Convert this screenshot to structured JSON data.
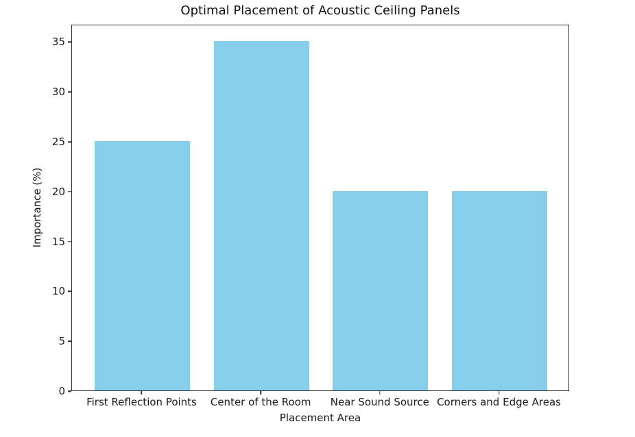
{
  "chart_data": {
    "type": "bar",
    "title": "Optimal Placement of Acoustic Ceiling Panels",
    "xlabel": "Placement Area",
    "ylabel": "Importance (%)",
    "categories": [
      "First Reflection Points",
      "Center of the Room",
      "Near Sound Source",
      "Corners and Edge Areas"
    ],
    "values": [
      25,
      35,
      20,
      20
    ],
    "yticks": [
      0,
      5,
      10,
      15,
      20,
      25,
      30,
      35
    ],
    "ylim": [
      0,
      36.75
    ],
    "bar_color": "#87CEEB",
    "bar_width_frac": 0.8,
    "grid": false,
    "legend": "none",
    "background_color": "#ffffff"
  }
}
